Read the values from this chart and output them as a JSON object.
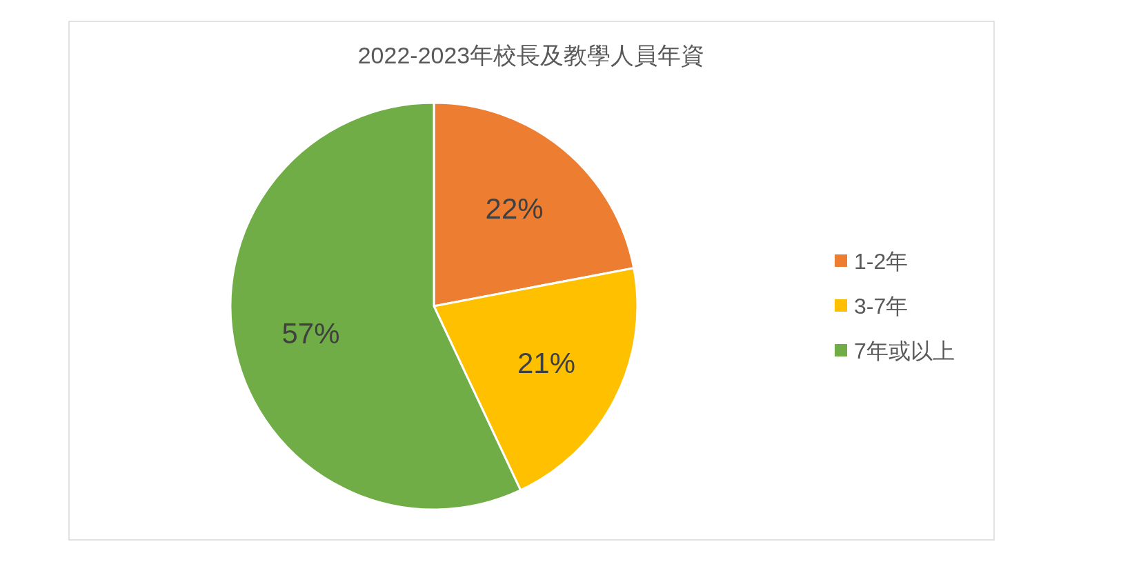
{
  "chart_data": {
    "type": "pie",
    "title": "2022-2023年校長及教學人員年資",
    "categories": [
      "1-2年",
      "3-7年",
      "7年或以上"
    ],
    "values": [
      22,
      21,
      57
    ],
    "value_labels": [
      "22%",
      "21%",
      "57%"
    ],
    "colors": [
      "#ed7d31",
      "#ffc000",
      "#70ad47"
    ],
    "legend": "right"
  }
}
